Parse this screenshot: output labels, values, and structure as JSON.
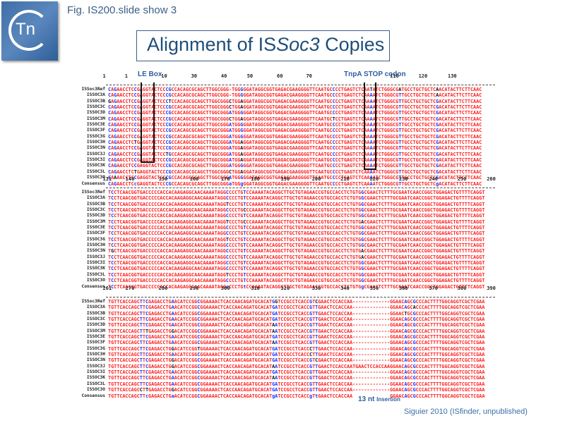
{
  "header": {
    "logo_text": "Tn",
    "figure_label": "Fig. IS200.slide show 3",
    "title_prefix": "Alignment of IS",
    "title_italic": "Soc3",
    "title_suffix": " Copies"
  },
  "annotations": {
    "le_box": "LE Box",
    "stop_codon": "TnpA STOP codon",
    "insertion_count": "13 nt",
    "insertion_label": "Insertion",
    "citation": "Siguier 2010 (ISfinder, unpublished)"
  },
  "sequence_names": [
    "ISSoc3Ref",
    "ISSOC3A",
    "ISSOC3B",
    "ISSOC3C",
    "ISSOC3D",
    "ISSOC3M",
    "ISSOC3E",
    "ISSOC3F",
    "ISSOC3G",
    "ISSOC3H",
    "ISSOC3N",
    "ISSOC3J",
    "ISSOC3I",
    "ISSOC3K",
    "ISSOC3L",
    "ISSOC3O",
    "Consensus"
  ],
  "blocks": [
    {
      "ruler": [
        "1",
        "1",
        "10",
        "30",
        "40",
        "50",
        "60",
        "70",
        "",
        "110",
        "120",
        "130"
      ],
      "rows": [
        "CAGAACCTCCGAGGTACTCCCGCCACAGCGCAGCTTGGCGGG-TGGGGGATAGGCGGTGAGACGAAGGGGTTCAATGCCCCTGAGTCTCAATATCTGGGCGATGCCTGCTGCTCAACATACTTCTTCAAC",
        "CAGAACCTCCGAGGTACTCCCGCCACAGCGCAGCTTGGCGGG-TGGGGGATAGGCGGTGAGACGAAGGGGTTCAATGCCCCTGAGTCTCAAAATCTGGGCGTTGCCTGCTGCTCAACATACTTCTTCAAC",
        "GAGAACCTCCGAGGTACTCCCTCCACAGCGCAGCTTGGCGGGCTGGAGGATAGGCGGTGAGACGAAGGGGTTCAATGCCCCTGAGTCTCAAAATCTGGGCGTTGCCTGCTGCTCGACATACTTCTTCAAC",
        "CAGAACCTCCGAGGTACTCCCGCCACAGCGCAGCTTGGCGGGCTGGAGGATAGGCGGTGAGACGAAGGGGTTCAATGCCCCTGAGTCTCAAAATCTGGGCGTTGCCTGCTGCTCGACATACTTCTTCAAC",
        "CAGAACCTCCGAGGTACTCCCGCCACAGCGCAGCTTGGCGGGATGGGGGATAGGCGGTGAGACGAAGGGGTTCAATGCCCCTGAGTCTCAAAATCTGGGCGTTGCCTGCTGCTCGACATACTTCTTCAAC",
        "CAGAACCTCCGAGGTACTCCCGCCACAGCGCAGCTTGGCGGGCTGGAGGATAGGCGGTGAGACGAAGGGGTTCAATGCTCCTGAGTCTCAAAATCTGGGCGTTGCCTGCTGCTCGACATACTTCTTCAAC",
        "CAGAACCTCCGAGGTACTCCCGCCACAGCGCAGCTTGGCGGGATGGGGGATAGGCGGTGAGACGAAGGGGTTCAATGCCCCTGAGTCTCAAAATCTGGGCGTTGCCTGCTGCTCGACATACTTCTTCAAC",
        "CAGAACCTCCGAGGTACTCCCGCCACAGCGCAGCTTGGCGGGATGGGGGATAGGCGGTGAGACGAAGGGGTTCAATGCCCCTGAGTCTCAAAATCTGGGCGTTGCCTGCTGCTCGACATACTTCTTCAAC",
        "CAGAACCTCCGAGGTACTCCCGCCACAGCGCAGCTTGGCGGGATGGGGGATAGGCGGTGAGACGAAGGGGTTCAATGCCCCTGAGTCTCAAAATCTGGGCGTTGCCTGCTGCTCGACATACTTCTTCAAC",
        "CAGAACCTCTGAGGTACTCCCGCCACAGCGCAGCTTGGCGGGATGGAGGATAGGCGGTGAGACGAAGGGGTTCAATGCCCCTGAGTCTCAAAATCTGGGCGTTGCCTGCTGCTCGACATACTTCTTCAAC",
        "CAGAACCTCCGAGGTACTCCCGCCACAGCGCAGCTTGGCGGGATGGAGGATAGGCGGTGAGACGAAGGGGTTCAATGCCCCTGAGTCTCAAAATCTGGGCGTTGCCTGCTGCTCGACATACTTCTTCAAC",
        "CAGAACCTCCGAGGTACTCCTGCCACAGCGCAGCTTGGCGGGATGGAGGATAGGCGGTGAGACGAAGGGGTTCAATGCCCCTGAGTCTCAAAATCTGGGCGTTGCCTGCTGCTCGACATACTTCTTCAAC",
        "CAGAACCTCCGAGGTACTCCCGCCACAGCGCAGCTTGGCGGGATGGAGGATAGGCGGTGAGACGAAGGGGTTCAATGCCCCTGAGTCTCAAAATCTGGGCGTTGCCTGCTGCTCGACATACTTCTTCAAC",
        "CAGAACCTCCGAGGTACTCCCGCCACAGCGCAGCTTGGCGGGATGGGGGATAGGCGGTGAGACGAAGGGGTTCAATGCCCCTGAGTCTCAAAATCTGGGCGTTGCCTGCTGCTCGACATACTTCTTCAAC",
        "CAGAACCTCTGAGGTACTCCCGCCACAGCGCAGCTTGGCGGGCTGGAGGATAGGCGGTGAGACGAAGGGGTTCAATGCCCCTGAGTCTCAAAATCTGGGCGTTGCCTGCTGCTCGACATACTTCTTCAAC",
        "CAAAACCTCCGAGGTACTCCCGCCACAGCGCAGCTTGGCGGGATGGGGGATAGGCGGTGAGACGAAGGGGTTCAATGCCCCTGAGTCTCAAAATCTGGGCGTTGCCTGCTGCTCGACATACTTCTTCAAC",
        "CAGAACCTCcGAGGTACTCCCGCCACAGCGCAGCTTGGCGGGaTGGgGGATAGGCGGTGAGACGAAGGGGTTCAATGCCCCTGAGTCTCAAAATCTGGGCGTTGCCTGCTGCTCgACATACTTCTTCAAC"
      ]
    },
    {
      "ruler": [
        "131",
        "140",
        "150",
        "160",
        "170",
        "180",
        "190",
        "200",
        "210",
        "220",
        "230",
        "240",
        "250",
        "260"
      ],
      "rows": [
        "TCCTCAACGGTGACCCCCACCACAAGAGGCAACAAAATAGGCCCCTGTCCAAAATACAGGCTTGCTGTAGAACCGTGCCACCTCTGTGGCGAACTCTTTGCGAATCAACCGGCTGGAGACTGTTTTCAGGT",
        "TCCTCAACGGTGACCCCCACCACAAGAGGCAACAAAATAGGCCCCTGTCCAAAATACAGGCTTGCTGTAGAACCGTGCCACCTCTGTGGCGAACTCTTTGCGAATCAACCGGCTGGAGACTGTTTTCAGGT",
        "TCCTCAACGGTGACCCCCACCACAAGAGGCAACAAAATAGGTCCCTGTCCAAAATACAGGCTTGCTGTAGAACCGTGCCACCTCTGTGGCGAACTCTTTGCGAATCAACCGGCTGGAGACTGTTTTCAGGT",
        "TCCTCAACGGTGACCCCCACCACAAGAGGCAACAAAATAGGCCCCTGCCCAAAATACAGGCTTGCTGTAGAACCGTGCCACCTCTGTGGCGAACTCTTTGCGAATCAACCGGCTGGAGACTGTTTTCAGGT",
        "TCCTCAACGGTGACCCCCACCACAAGAGGCAACAAAATAGGCCCCTGTCCAAAATACAGGCTTGCTGTAGAACCGTGCCACCTCTGTGGCGAACTCTTTGCGAATCAACCGGCTGGAGACTGTTTTCAGGT",
        "TCCTCAACGGTGACCCCCACCACAAGAGGCAACAAAATAGGTCCCTGCCCAAAATACAGGCTTGCTGTAGAACCGTGCCACCTCTGTGACGAACTCTTTGCGAATCAACCGGCTGGAGACTGTTTTCAGGT",
        "TCCTCAACGGTGACCCCCACCACAAGAGGCAACAAAATAGGCCCCTGTCCAAAATACAGGCTTGCTGTAGAACCGTGCCACCTCTGTGGCGAACTCTTTGCGAATCAACCGGCTGGAGACTGTTTTCAGGT",
        "TCCTCAACGGTGACCCCCACCACAAGAGGCAACAAAATAGGCCCCTGTCCAAAATACAGGCTTGCTGTAGAACCGTGCCACCTCTGTGGCGAACTCTTTGCGAATCAACCGGCTGGAGACTGTTTTCAGGT",
        "TCCTCAACGGTGACCCCCACCACAAGAGGCAACAAAATAGGTCCCTGTCCAAAATACAGGCTTGCTGTAGAACCGTGCCACCTCTGTGGCGAACTCTTTGCGAATCAACCGGCTGGAGACTGTTTTCAGGT",
        "TCCTCAACGGTGACCCCCACCACAAGAGGCAACAAAATAGGCCCCTGTCCAAAATACAGGCTTGCTGTAGAACCGTGCCACCTCTGTGGCGAACTCTTTGCGAATCAACCGGCTGGAGACTGTTTTCAGGT",
        "TGCTCAACGGTGACCCCCACCACAAGAGGCAACAAAATAGGCCCCTGTCCAAAATACAGGCTTGCTGTAGAACCGTGCCACCTCTGTGACGAACTCTTTGCGAATCAACCGGCTGGAGACTGTTTTCAGGT",
        "TCCTCAACGGTGACCCCCACCACAAGAGGCAACAAAATAGGCCCCTGTCCAAAATACAGGCTTGCTGTAGAACCGTGCCACCTCTGTGACGAACTCTTTGCGAATCAACCGGCTGGAGACTGTTTTCAGGT",
        "TCCTCAACGGTGACCCCCACCACAAGAGGCAACAAAATAGGCCCCTGTCCAAAATACAGGCTTGCTGTAGAACCGTGCCACCTCTGTGGCGAACTCTTTGCGAATCAACCGGCTGGAGACTGTTTTCAGGT",
        "TCCTCAACGGTGACCCCCACCACAAGAGGCAACAAAATAGGCCCCTGTCCAAAATACAGGCTTGCTGTAGAACCGTGCCACCTCTGTGGCGAACTCTTTGCGAATCAACCGGCTGGAGACTGTTTTCAGGT",
        "TCCTCAACGGTGACCCCCACCACAAGAGGCAACAAAATAGGTCCCTGTCCAAAATACAGGCTTGCTGTAGAACCGTGCCACCTCTGTGGCGAACTCTTTGCGAATCAACCGGCTGGAGACTGTTTTCAGGT",
        "TCCTCAACGGTGACCCCCACCACAAGAGGCAACAAAATAGGCCCCTGTCCAAAATACAGGCTTGCTGTAGAACCGTGCCACCTCTGTGGCGAACTCTTTGCGAATCAACCGGCTGGAGACTGTTTTCAGGT",
        "TCCTCAACGGTGACCCCCACCACAAGAGGCAACAAAATAGGcCCCTGtCCAAAATACAGGCTTGCTGTAGAACCGTGCCACCTCTGTGgCGAACTCTTTGCGAATCAACCGGCTGGAGACTGTTTTCAGGT"
      ]
    },
    {
      "ruler": [
        "261",
        "270",
        "280",
        "290",
        "300",
        "310",
        "320",
        "330",
        "340",
        "350",
        "360",
        "370",
        "380",
        "390"
      ],
      "rows": [
        "TGTTCACCAGCTTCGAGACCTGAACATCCGGCGGAAAACTCACCAACAGATGCACATGGTCCGCCTCACCGTCGAACTCCACCAA-------------GGAACAGCGCCCACTTTTGGCAGGTCGCTCGAA",
        "TGTTCACCAGCTTCGAGACCTGAACATCCGGCGGAAAACTCACCAACAGATGCACATGATCCGCCTCACCGTTGAACTCCACCAA-------------GGAACAGCACCCACTTTTGGCAGGTCGCTCGAA",
        "TGTTCACCAGCTTCGAGACCTGAACATCCGGCGGAAAACTCACCAACAGATGCACATGATCCGCCTCACCGTTGAACTCCACCAA-------------GGAACTGCGCCCACTTTTGGCAGGTCGCTCGAA",
        "TGTTCACCAGCTTCGAGACCTGAACATCCGGCGGAAAACTCACCAACAGATGCACATGATCCGCCTCACCGTTGAACTCCACCAA-------------GGAACAGCGCCCACTTTTGGCAGGTCGCTCGAA",
        "TGTTCACCAGCTTCGAGACCTGAACATCCGGCGGAAAACTCACCAACAGATGCACATAATCCGCCTCACCGTTGAACTCCACCAA-------------GGAACAGCGCCCACTTTTGGCAGGTCGCTCGAA",
        "TGTTCACCAGCTTTGAGACCTGGACATCCGGCGGAAAACTCACCAACAGATGCACATAATCCGCCTCACCGTTGAACTCCACCAA-------------GGAACAGCGCCCACTTTTGGCAGGTCGCTCGAA",
        "TGTTCACCAGCTTCGAGACCTGAACATCCGGCGGAAAACTCACCAACAGATGCACATGATCCGCCTCACCGTTGAACTCCACCAA-------------GGAACAGCGCCCACTTTTGGCAGGTCGCTCGAA",
        "TGTTCACCAGCTTCGAGACCTGAACATCCGGCGGAAAACTCACCAACAGATGCACATAATCCGCCTCACCGTTGAACTCCACCAA-------------GGAACAGCGCCCACTTTTGGCAGGTCGCTCGAA",
        "TGTTCACCAGCTTCGAGACCTGGACATCCGGTGGAAAACTCACCAACAGATGCACATGATCCGCCTCACCCTTGAACTCCACCAA-------------GGAACAGCGCCCACTTTTGGCAGGTCGCTCGAA",
        "TGTTCACCAGCTTCGAGACCTGAACATCCGGCGGAAAACTCACCAACAGATGCACATGATCCGCCTCACCCTTGAACTCCACCAA-------------GGAACAGCGCCCACTTTTGGCAGGTCGCTCGAA",
        "TGTTCACCAGCTTCGAGACCTGGACATCCGGCGGAAAACTCACCAACAGATGCACATGATCCGCCTCACCGTCGAACTCCACCAA-------------GGAACAGCGCCCACTTTTGGCAGGTCGCTCGAA",
        "TGTTCACCAGCTTCGAGACCTGGACATCCGGCGGAAAACTCACCAACAGATGCACATAATCCGCCTCACCGTTGAACTCCACCAATGAACTCCACCAAGGAACAGCGCCCACTTTTGGCAGGTCGCTCGAA",
        "TGTTCACCAGCTTCGAGACCTGAACATCCGGCGGAAAACTCACCAACAGATGCACATGATCCGCCTCACCGTTGAACTCCACCAA-------------GGAACAGCGCCCACTTTTGGCAGGTCGCTCGAA",
        "TGTTCACCAGCTTCGAGACCTGAACATCCGGCGGAAAACTCACCAACAGATGCACATAATCCGCCTCACCGTTGAACTCCACCAA-------------GGAACAGCGCCCACTTTTGGCAGGTCGCTCGAA",
        "TGTTCACCAGCTTCGAGACCTGAACATCCGGCGGAAAACTCACCAACAGATGCACATGATCCGCCTCACCGTTGAACTCCACCAA-------------GGAACAGCGCCCACTTTTGGCAGGTCGCTCGAA",
        "TGTTCACCAGCCTTGAGACCTGGACATCCGGCGGAAAACTCACCAACAGATGCACATGATCCGCCTCACCGTTGAACTCCACCAA-------------GGAACAGCGCCCACTTTTGGCAGGTCGCTCGAA",
        "TGTTCACCAGCTTcGAGACCTGaACATCCGGCGGAAAACTCACCAACAGATGCACATgATCCGCCTCACCgTtGAACTCCACCAA             GGAACAGCGCCCACTTTTGGCAGGTCGCTCGAA"
      ]
    }
  ],
  "colors": {
    "match": "#ff1f1f",
    "variant_blue": "#1a33ff",
    "variant_black": "#111111",
    "annotation": "#2e5f9e",
    "title": "#1f4e79"
  }
}
